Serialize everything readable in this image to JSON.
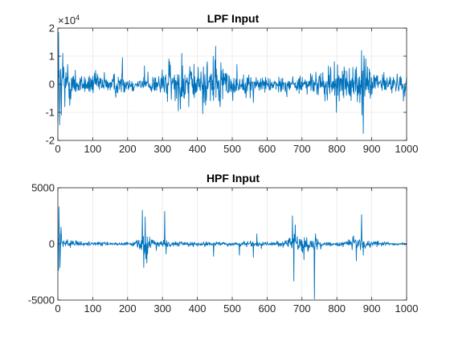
{
  "figure": {
    "background": "#ffffff"
  },
  "colors": {
    "line": "#0072bd",
    "grid": "#e0e0e0",
    "axis": "#262626"
  },
  "chart_data": [
    {
      "type": "line",
      "title": "LPF Input",
      "xlabel": "",
      "ylabel": "",
      "xlim": [
        0,
        1000
      ],
      "ylim": [
        -20000,
        20000
      ],
      "xticks": [
        0,
        100,
        200,
        300,
        400,
        500,
        600,
        700,
        800,
        900,
        1000
      ],
      "yticks": [
        -2,
        -1,
        0,
        1,
        2
      ],
      "ytick_exponent": {
        "base": "×10",
        "power": "4"
      },
      "grid": true,
      "series": [
        {
          "n_samples": 1000,
          "envelope": [
            [
              0,
              18000
            ],
            [
              2,
              15000
            ],
            [
              4,
              9000
            ],
            [
              8,
              7000
            ],
            [
              12,
              9000
            ],
            [
              16,
              7000
            ],
            [
              22,
              5000
            ],
            [
              30,
              6000
            ],
            [
              40,
              4500
            ],
            [
              60,
              3500
            ],
            [
              80,
              3000
            ],
            [
              100,
              4000
            ],
            [
              120,
              3500
            ],
            [
              150,
              3000
            ],
            [
              170,
              4000
            ],
            [
              180,
              4500
            ],
            [
              200,
              2500
            ],
            [
              230,
              2000
            ],
            [
              260,
              2500
            ],
            [
              300,
              4500
            ],
            [
              320,
              6500
            ],
            [
              340,
              5500
            ],
            [
              350,
              7000
            ],
            [
              370,
              6000
            ],
            [
              400,
              5000
            ],
            [
              430,
              6500
            ],
            [
              450,
              8000
            ],
            [
              460,
              7000
            ],
            [
              480,
              5000
            ],
            [
              500,
              3500
            ],
            [
              530,
              3000
            ],
            [
              560,
              3000
            ],
            [
              600,
              2500
            ],
            [
              640,
              2500
            ],
            [
              680,
              2500
            ],
            [
              720,
              3000
            ],
            [
              760,
              4000
            ],
            [
              790,
              5500
            ],
            [
              800,
              6000
            ],
            [
              820,
              4500
            ],
            [
              850,
              4000
            ],
            [
              870,
              9000
            ],
            [
              880,
              7500
            ],
            [
              900,
              4000
            ],
            [
              940,
              3500
            ],
            [
              970,
              3000
            ],
            [
              1000,
              2500
            ]
          ],
          "spikes": [
            {
              "x": 2,
              "y": 18500
            },
            {
              "x": 5,
              "y": -14500
            },
            {
              "x": 10,
              "y": -11000
            },
            {
              "x": 14,
              "y": 11000
            },
            {
              "x": 20,
              "y": -8000
            },
            {
              "x": 28,
              "y": 7000
            },
            {
              "x": 34,
              "y": -7500
            },
            {
              "x": 50,
              "y": 5000
            },
            {
              "x": 185,
              "y": 9500
            },
            {
              "x": 248,
              "y": 6500
            },
            {
              "x": 318,
              "y": 9000
            },
            {
              "x": 345,
              "y": -9500
            },
            {
              "x": 355,
              "y": 11000
            },
            {
              "x": 375,
              "y": -8000
            },
            {
              "x": 415,
              "y": -10500
            },
            {
              "x": 428,
              "y": 8000
            },
            {
              "x": 445,
              "y": 10000
            },
            {
              "x": 452,
              "y": 13500
            },
            {
              "x": 465,
              "y": -8000
            },
            {
              "x": 560,
              "y": -6500
            },
            {
              "x": 765,
              "y": -6000
            },
            {
              "x": 775,
              "y": 6500
            },
            {
              "x": 792,
              "y": 8000
            },
            {
              "x": 798,
              "y": -10000
            },
            {
              "x": 845,
              "y": 6000
            },
            {
              "x": 870,
              "y": 12000
            },
            {
              "x": 875,
              "y": -17500
            },
            {
              "x": 882,
              "y": 9000
            },
            {
              "x": 990,
              "y": -6000
            }
          ]
        }
      ]
    },
    {
      "type": "line",
      "title": "HPF Input",
      "xlabel": "",
      "ylabel": "",
      "xlim": [
        0,
        1000
      ],
      "ylim": [
        -5000,
        5000
      ],
      "xticks": [
        0,
        100,
        200,
        300,
        400,
        500,
        600,
        700,
        800,
        900,
        1000
      ],
      "yticks": [
        -5000,
        0,
        5000
      ],
      "grid": true,
      "series": [
        {
          "n_samples": 1000,
          "envelope": [
            [
              0,
              2200
            ],
            [
              5,
              1500
            ],
            [
              10,
              1000
            ],
            [
              20,
              500
            ],
            [
              40,
              300
            ],
            [
              60,
              200
            ],
            [
              100,
              150
            ],
            [
              160,
              150
            ],
            [
              220,
              150
            ],
            [
              235,
              600
            ],
            [
              245,
              1200
            ],
            [
              255,
              900
            ],
            [
              270,
              300
            ],
            [
              300,
              250
            ],
            [
              310,
              500
            ],
            [
              320,
              250
            ],
            [
              360,
              150
            ],
            [
              400,
              200
            ],
            [
              440,
              150
            ],
            [
              500,
              150
            ],
            [
              540,
              200
            ],
            [
              560,
              250
            ],
            [
              580,
              200
            ],
            [
              620,
              150
            ],
            [
              660,
              400
            ],
            [
              670,
              800
            ],
            [
              680,
              700
            ],
            [
              700,
              600
            ],
            [
              730,
              600
            ],
            [
              745,
              400
            ],
            [
              760,
              150
            ],
            [
              820,
              200
            ],
            [
              840,
              500
            ],
            [
              860,
              700
            ],
            [
              870,
              600
            ],
            [
              900,
              200
            ],
            [
              950,
              150
            ],
            [
              1000,
              120
            ]
          ],
          "spikes": [
            {
              "x": 3,
              "y": 3300
            },
            {
              "x": 6,
              "y": -2100
            },
            {
              "x": 9,
              "y": 1500
            },
            {
              "x": 242,
              "y": 3000
            },
            {
              "x": 246,
              "y": -2100
            },
            {
              "x": 250,
              "y": 2400
            },
            {
              "x": 255,
              "y": -1700
            },
            {
              "x": 306,
              "y": 2900
            },
            {
              "x": 310,
              "y": -900
            },
            {
              "x": 446,
              "y": -1100
            },
            {
              "x": 520,
              "y": -1000
            },
            {
              "x": 560,
              "y": -1200
            },
            {
              "x": 570,
              "y": 900
            },
            {
              "x": 672,
              "y": 2500
            },
            {
              "x": 676,
              "y": -3300
            },
            {
              "x": 680,
              "y": 1700
            },
            {
              "x": 705,
              "y": -1400
            },
            {
              "x": 735,
              "y": -4900
            },
            {
              "x": 738,
              "y": 900
            },
            {
              "x": 855,
              "y": -1500
            },
            {
              "x": 870,
              "y": 2600
            },
            {
              "x": 875,
              "y": -1000
            }
          ]
        }
      ]
    }
  ]
}
